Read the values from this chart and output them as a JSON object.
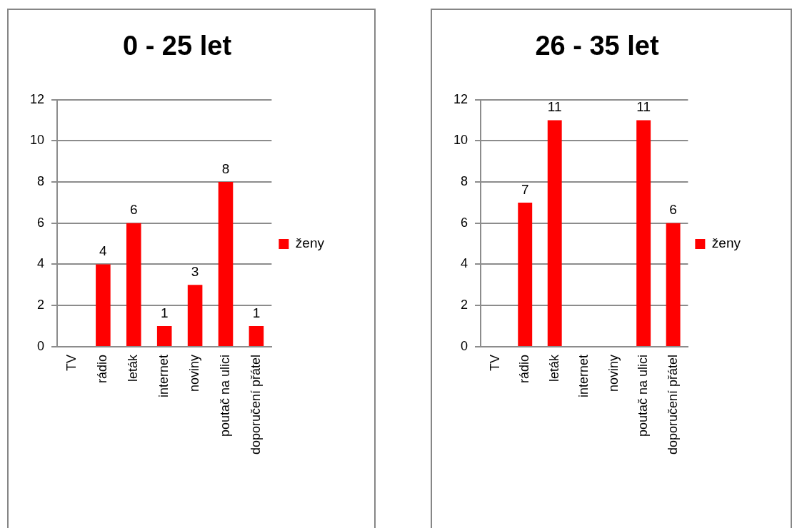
{
  "chart_data": [
    {
      "type": "bar",
      "title": "0 - 25 let",
      "categories": [
        "TV",
        "rádio",
        "leták",
        "internet",
        "noviny",
        "poutač na ulici",
        "doporučení přátel"
      ],
      "series": [
        {
          "name": "ženy",
          "color": "#ff0000",
          "values": [
            null,
            4,
            6,
            1,
            3,
            8,
            1
          ]
        }
      ],
      "ylim": [
        0,
        12
      ],
      "yticks": [
        0,
        2,
        4,
        6,
        8,
        10,
        12
      ],
      "grid": "y",
      "legend": "right",
      "data_labels": true
    },
    {
      "type": "bar",
      "title": "26 - 35 let",
      "categories": [
        "TV",
        "rádio",
        "leták",
        "internet",
        "noviny",
        "poutač na ulici",
        "doporučení přátel"
      ],
      "series": [
        {
          "name": "ženy",
          "color": "#ff0000",
          "values": [
            null,
            7,
            11,
            null,
            null,
            11,
            6
          ]
        }
      ],
      "ylim": [
        0,
        12
      ],
      "yticks": [
        0,
        2,
        4,
        6,
        8,
        10,
        12
      ],
      "grid": "y",
      "legend": "right",
      "data_labels": true
    }
  ]
}
